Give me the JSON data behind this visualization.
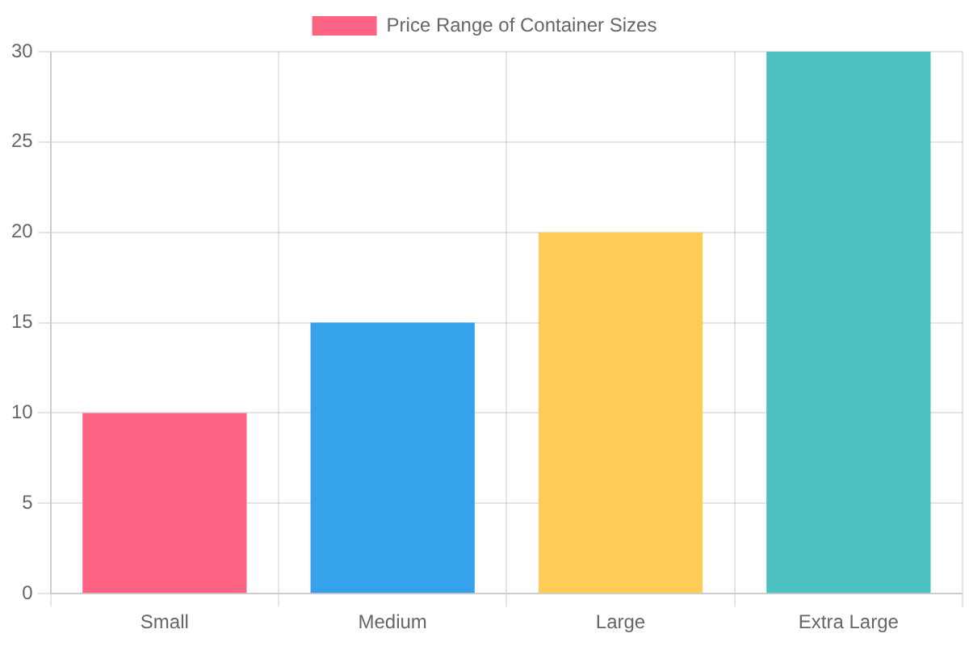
{
  "chart_data": {
    "type": "bar",
    "categories": [
      "Small",
      "Medium",
      "Large",
      "Extra Large"
    ],
    "series": [
      {
        "name": "Price Range of Container Sizes",
        "colors": [
          "#ff6384",
          "#36a2eb",
          "#ffcd56",
          "#4bc0c0"
        ],
        "values": [
          10,
          15,
          20,
          30
        ]
      }
    ],
    "ylim": [
      0,
      30
    ],
    "yticks": [
      0,
      5,
      10,
      15,
      20,
      25,
      30
    ],
    "grid": true,
    "legend": "top"
  }
}
